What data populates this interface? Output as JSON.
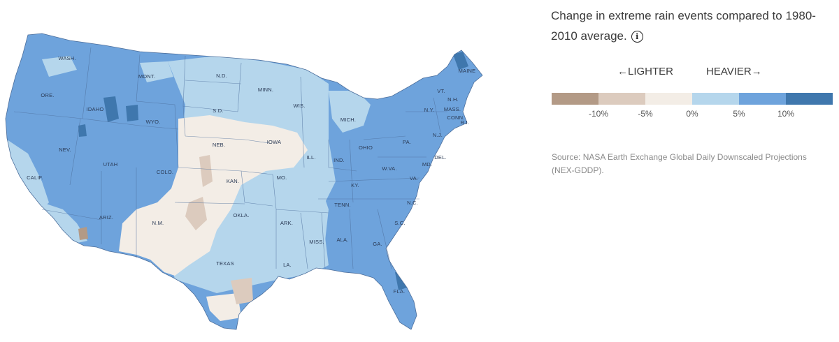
{
  "legend": {
    "title": "Change in extreme rain events compared to 1980-2010 average.",
    "info_icon": "info-icon",
    "lighter_label": "←LIGHTER",
    "heavier_label": "HEAVIER→",
    "colors": [
      "#b39a86",
      "#dccbbe",
      "#f3ede6",
      "#b5d6ec",
      "#6ea3dc",
      "#3f77ad"
    ],
    "ticks": [
      "-10%",
      "-5%",
      "0%",
      "5%",
      "10%"
    ]
  },
  "source": "Source: NASA Earth Exchange Global Daily Downscaled Projections (NEX-GDDP).",
  "map": {
    "colors": {
      "brown": "#b39a86",
      "tan": "#dccbbe",
      "cream": "#f3ede6",
      "light_blue": "#b5d6ec",
      "mid_blue": "#6ea3dc",
      "dark_blue": "#3f77ad"
    },
    "states": [
      "WASH.",
      "ORE.",
      "IDAHO",
      "MONT.",
      "N.D.",
      "MINN.",
      "WYO.",
      "S.D.",
      "WIS.",
      "MICH.",
      "MAINE",
      "VT.",
      "N.H.",
      "MASS.",
      "N.Y.",
      "CONN.",
      "R.I.",
      "NEV.",
      "UTAH",
      "NEB.",
      "IOWA",
      "PA.",
      "N.J.",
      "CALIF.",
      "COLO.",
      "ILL.",
      "IND.",
      "OHIO",
      "DEL.",
      "MD.",
      "W.VA.",
      "KAN.",
      "MO.",
      "KY.",
      "VA.",
      "TENN.",
      "N.C.",
      "OKLA.",
      "ARIZ.",
      "N.M.",
      "ARK.",
      "S.C.",
      "MISS.",
      "ALA.",
      "GA.",
      "TEXAS",
      "LA.",
      "FLA."
    ]
  }
}
